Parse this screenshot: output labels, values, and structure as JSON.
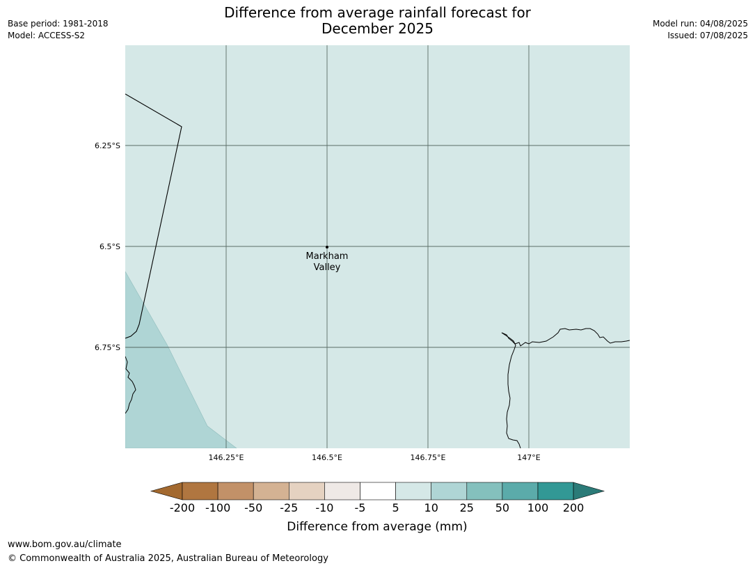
{
  "title_line1": "Difference from average rainfall forecast for",
  "title_line2": "December 2025",
  "meta_left": {
    "base_period": "Base period: 1981-2018",
    "model": "Model: ACCESS-S2"
  },
  "meta_right": {
    "model_run": "Model run: 04/08/2025",
    "issued": "Issued: 07/08/2025"
  },
  "map": {
    "lat_labels": [
      "6.25°S",
      "6.5°S",
      "6.75°S"
    ],
    "lon_labels": [
      "146.25°E",
      "146.5°E",
      "146.75°E",
      "147°E"
    ],
    "place_label": [
      "Markham",
      "Valley"
    ],
    "colors": {
      "background_category": "#d5e8e7",
      "secondary_category": "#afd5d5",
      "gridline": "#44574f"
    }
  },
  "legend": {
    "tick_labels": [
      "-200",
      "-100",
      "-50",
      "-25",
      "-10",
      "-5",
      "5",
      "10",
      "25",
      "50",
      "100",
      "200"
    ],
    "colors": [
      "#a3692f",
      "#b07640",
      "#c29168",
      "#d4b293",
      "#e5d2c1",
      "#efe9e6",
      "#ffffff",
      "#d5e8e7",
      "#afd5d5",
      "#84c0bd",
      "#5babaa",
      "#329895",
      "#2b7b78"
    ],
    "label": "Difference from average (mm)"
  },
  "footer": {
    "url": "www.bom.gov.au/climate",
    "copyright": "© Commonwealth of Australia 2025, Australian Bureau of Meteorology"
  }
}
